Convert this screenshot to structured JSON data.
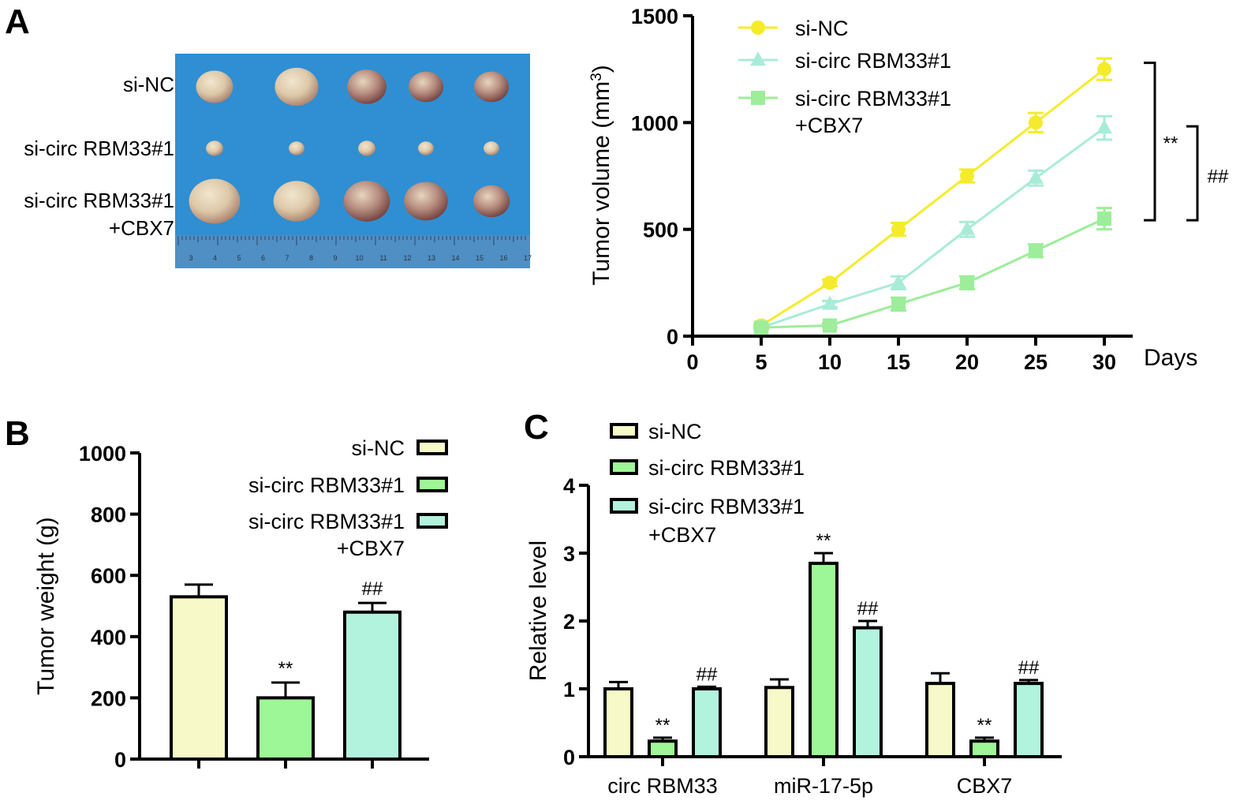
{
  "panel_labels": {
    "a": "A",
    "b": "B",
    "c": "C"
  },
  "colors": {
    "si_nc_line": "#f4ec2a",
    "si_circ_line": "#a8ecd8",
    "si_circ_cbx7_line": "#9ded9a",
    "bar_si_nc": "#f8f9c8",
    "bar_si_circ": "#9ef796",
    "bar_si_circ_cbx7": "#b2f3de",
    "photo_background": "#2f8fd2"
  },
  "photo": {
    "row_labels": [
      {
        "lines": [
          "si-NC"
        ]
      },
      {
        "lines": [
          "si-circ RBM33#1"
        ]
      },
      {
        "lines": [
          "si-circ RBM33#1",
          "+CBX7"
        ]
      }
    ],
    "ruler_numbers": [
      "3",
      "4",
      "5",
      "6",
      "7",
      "8",
      "9",
      "10",
      "11",
      "12",
      "13",
      "14",
      "15",
      "16",
      "17"
    ],
    "tumor_sizes": [
      [
        0.85,
        1.0,
        0.9,
        0.8,
        0.8
      ],
      [
        0.55,
        0.5,
        0.55,
        0.5,
        0.5
      ],
      [
        1.05,
        0.95,
        0.95,
        0.9,
        0.75
      ]
    ]
  },
  "chart_data": [
    {
      "type": "line",
      "panel": "A",
      "xlabel": "Days",
      "ylabel": "Tumor volume (mm",
      "ylabel_sup": "3",
      "ylabel_close": ")",
      "x": [
        5,
        10,
        15,
        20,
        25,
        30
      ],
      "xlim": [
        0,
        30
      ],
      "ylim": [
        0,
        1500
      ],
      "xticks": [
        0,
        5,
        10,
        15,
        20,
        25,
        30
      ],
      "yticks": [
        0,
        500,
        1000,
        1500
      ],
      "series": [
        {
          "name": "si-NC",
          "marker": "circle",
          "values": [
            50,
            250,
            500,
            750,
            1000,
            1250
          ],
          "errors": [
            8,
            15,
            30,
            30,
            45,
            50
          ]
        },
        {
          "name": "si-circ RBM33#1",
          "marker": "triangle",
          "values": [
            40,
            150,
            250,
            500,
            740,
            975
          ],
          "errors": [
            8,
            15,
            30,
            35,
            35,
            55
          ]
        },
        {
          "name": "si-circ RBM33#1",
          "name_line2": "+CBX7",
          "marker": "square",
          "values": [
            40,
            50,
            150,
            250,
            400,
            550
          ],
          "errors": [
            8,
            10,
            30,
            30,
            30,
            50
          ]
        }
      ],
      "annotations": [
        {
          "text": "**",
          "between": [
            0,
            2
          ]
        },
        {
          "text": "##",
          "between": [
            1,
            2
          ]
        }
      ],
      "grid": false,
      "legend": "top-left"
    },
    {
      "type": "bar",
      "panel": "B",
      "ylabel": "Tumor weight (g)",
      "ylim": [
        0,
        1000
      ],
      "yticks": [
        0,
        200,
        400,
        600,
        800,
        1000
      ],
      "categories": [
        "si-NC",
        "si-circ RBM33#1",
        "si-circ RBM33#1 +CBX7"
      ],
      "legend_entries": [
        {
          "lines": [
            "si-NC"
          ]
        },
        {
          "lines": [
            "si-circ RBM33#1"
          ]
        },
        {
          "lines": [
            "si-circ RBM33#1",
            "+CBX7"
          ]
        }
      ],
      "values": [
        530,
        200,
        480
      ],
      "errors": [
        40,
        50,
        30
      ],
      "significance": [
        "",
        "**",
        "##"
      ],
      "grid": false,
      "legend": "top-right"
    },
    {
      "type": "bar",
      "panel": "C",
      "ylabel": "Relative level",
      "ylim": [
        0,
        4
      ],
      "yticks": [
        0,
        1,
        2,
        3,
        4
      ],
      "categories": [
        "circ RBM33",
        "miR-17-5p",
        "CBX7"
      ],
      "series": [
        {
          "name": "si-NC",
          "values": [
            1.0,
            1.02,
            1.08
          ],
          "errors": [
            0.1,
            0.12,
            0.15
          ],
          "significance": [
            "",
            "",
            ""
          ]
        },
        {
          "name": "si-circ RBM33#1",
          "values": [
            0.23,
            2.85,
            0.23
          ],
          "errors": [
            0.05,
            0.15,
            0.05
          ],
          "significance": [
            "**",
            "**",
            "**"
          ]
        },
        {
          "name": "si-circ RBM33#1",
          "name_line2": "+CBX7",
          "values": [
            1.0,
            1.9,
            1.08
          ],
          "errors": [
            0.03,
            0.1,
            0.05
          ],
          "significance": [
            "##",
            "##",
            "##"
          ]
        }
      ],
      "grid": false,
      "legend": "top-left"
    }
  ]
}
